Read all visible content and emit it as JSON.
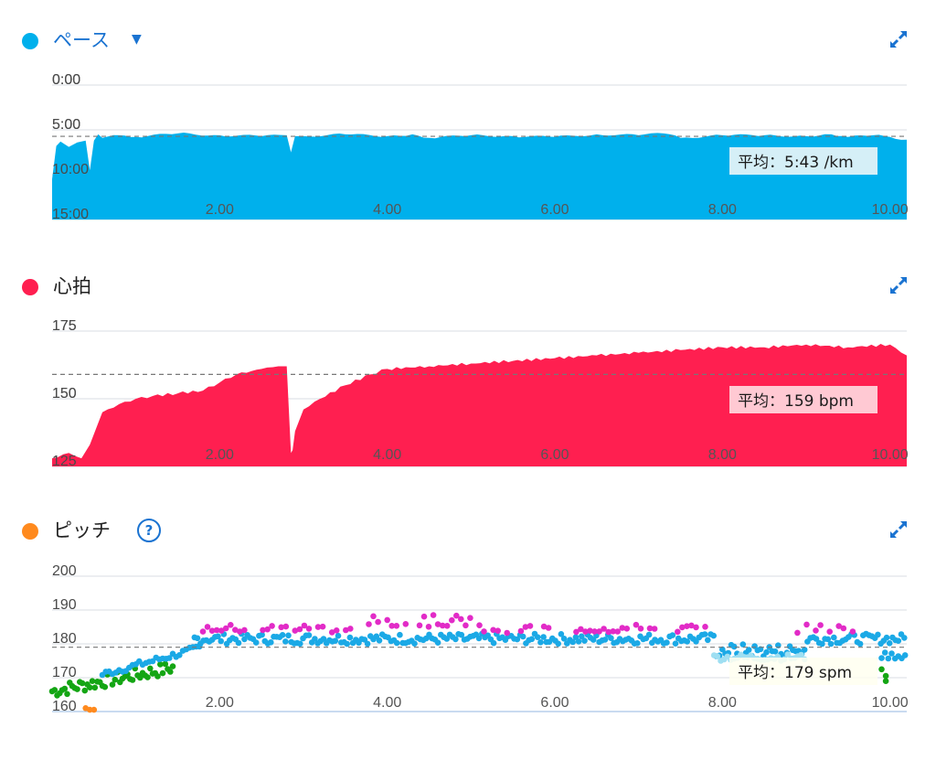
{
  "colors": {
    "pace": "#00b0ec",
    "heart": "#ff1f50",
    "cadence_dot": "#ff8a1e",
    "cadence_blue": "#1ba9e6",
    "cadence_magenta": "#e22bc7",
    "cadence_green": "#14a514",
    "cadence_orange": "#ff8a1e",
    "cadence_light": "#9fdff2",
    "accent": "#1a73d1",
    "grid": "#d9dde3",
    "avg_line": "#777777"
  },
  "chart_data": [
    {
      "id": "pace",
      "type": "area",
      "title": "ペース",
      "yticks": [
        "0:00",
        "5:00",
        "10:00",
        "15:00"
      ],
      "ylim": [
        0,
        15
      ],
      "y_inverted": true,
      "xticks": [
        "2.00",
        "4.00",
        "6.00",
        "8.00",
        "10.00"
      ],
      "xlim": [
        0,
        10.2
      ],
      "average": 5.72,
      "average_label": "平均：5:43 /km",
      "x": [
        0.0,
        0.05,
        0.1,
        0.2,
        0.3,
        0.4,
        0.45,
        0.5,
        0.55,
        0.6,
        0.8,
        1.0,
        1.5,
        2.0,
        2.5,
        2.8,
        2.85,
        2.9,
        3.0,
        3.5,
        4.0,
        4.3,
        4.5,
        5.0,
        5.5,
        6.0,
        6.5,
        7.0,
        7.3,
        7.5,
        8.0,
        8.5,
        9.0,
        9.3,
        9.5,
        9.8,
        10.0,
        10.2
      ],
      "y": [
        10.5,
        6.8,
        6.3,
        6.9,
        6.4,
        6.2,
        9.5,
        6.2,
        5.5,
        5.9,
        5.6,
        5.8,
        5.4,
        5.6,
        5.7,
        5.6,
        7.5,
        5.7,
        5.7,
        5.5,
        5.7,
        5.5,
        5.9,
        5.6,
        5.7,
        5.8,
        5.5,
        5.6,
        5.4,
        5.9,
        5.6,
        5.6,
        5.7,
        5.5,
        5.8,
        5.6,
        5.8,
        6.1
      ]
    },
    {
      "id": "heart",
      "type": "area",
      "title": "心拍",
      "yticks": [
        "175",
        "150",
        "125"
      ],
      "ylim": [
        125,
        175
      ],
      "xticks": [
        "2.00",
        "4.00",
        "6.00",
        "8.00",
        "10.00"
      ],
      "xlim": [
        0,
        10.2
      ],
      "average": 159,
      "average_label": "平均：159 bpm",
      "x": [
        0.0,
        0.2,
        0.35,
        0.45,
        0.55,
        0.6,
        0.8,
        1.0,
        1.2,
        1.5,
        1.8,
        2.0,
        2.2,
        2.5,
        2.7,
        2.8,
        2.85,
        2.87,
        2.9,
        3.0,
        3.2,
        3.5,
        3.8,
        4.0,
        4.5,
        5.0,
        5.5,
        6.0,
        6.5,
        7.0,
        7.5,
        8.0,
        8.5,
        9.0,
        9.5,
        10.0,
        10.2
      ],
      "y": [
        128,
        130,
        128,
        133,
        141,
        145,
        148,
        150,
        151,
        152,
        153,
        156,
        159,
        161,
        162,
        162,
        130,
        131,
        138,
        146,
        150,
        155,
        159,
        161,
        162,
        163,
        164,
        165,
        166,
        167,
        168,
        169,
        169,
        170,
        169,
        170,
        166
      ]
    },
    {
      "id": "cadence",
      "type": "scatter",
      "title": "ピッチ",
      "yticks": [
        "200",
        "190",
        "180",
        "170",
        "160"
      ],
      "ylim": [
        160,
        200
      ],
      "xticks": [
        "2.00",
        "4.00",
        "6.00",
        "8.00",
        "10.00"
      ],
      "xlim": [
        0,
        10.2
      ],
      "average": 179,
      "average_label": "平均：179 spm"
    }
  ],
  "headers": {
    "pace": {
      "title": "ペース",
      "dropdown_icon": "caret-down-icon",
      "expand_icon": "expand-icon"
    },
    "heart": {
      "title": "心拍",
      "expand_icon": "expand-icon"
    },
    "cadence": {
      "title": "ピッチ",
      "help_label": "?",
      "expand_icon": "expand-icon"
    }
  }
}
